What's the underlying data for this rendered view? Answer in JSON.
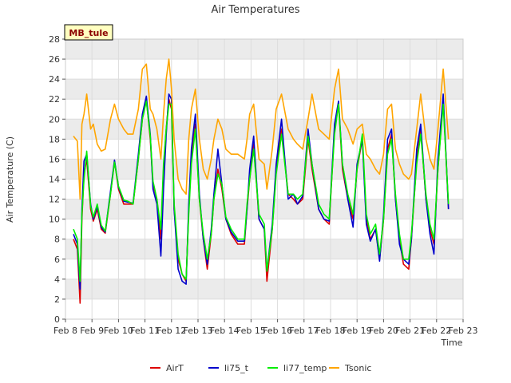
{
  "chart_data": {
    "type": "line",
    "title": "Air Temperatures",
    "xlabel": "Time",
    "ylabel": "Air Temperature (C)",
    "station_label": "MB_tule",
    "xlim": [
      8,
      23
    ],
    "ylim": [
      0,
      28
    ],
    "x_ticks": [
      8,
      9,
      10,
      11,
      12,
      13,
      14,
      15,
      16,
      17,
      18,
      19,
      20,
      21,
      22,
      23
    ],
    "x_tick_labels": [
      "Feb 8",
      "Feb 9",
      "Feb 10",
      "Feb 11",
      "Feb 12",
      "Feb 13",
      "Feb 14",
      "Feb 15",
      "Feb 16",
      "Feb 17",
      "Feb 18",
      "Feb 19",
      "Feb 20",
      "Feb 21",
      "Feb 22",
      "Feb 23"
    ],
    "y_ticks": [
      0,
      2,
      4,
      6,
      8,
      10,
      12,
      14,
      16,
      18,
      20,
      22,
      24,
      26,
      28
    ],
    "grid": true,
    "legend_position": "bottom",
    "series": [
      {
        "name": "AirT",
        "color": "#dd0000",
        "x": [
          8.3,
          8.45,
          8.55,
          8.62,
          8.7,
          8.8,
          8.95,
          9.05,
          9.2,
          9.35,
          9.5,
          9.7,
          9.85,
          10.0,
          10.2,
          10.35,
          10.55,
          10.75,
          10.9,
          11.05,
          11.2,
          11.3,
          11.45,
          11.6,
          11.7,
          11.8,
          11.9,
          12.0,
          12.1,
          12.25,
          12.4,
          12.55,
          12.65,
          12.75,
          12.9,
          13.05,
          13.2,
          13.35,
          13.5,
          13.6,
          13.75,
          13.9,
          14.05,
          14.25,
          14.5,
          14.75,
          14.85,
          14.95,
          15.1,
          15.3,
          15.5,
          15.6,
          15.8,
          15.95,
          16.15,
          16.4,
          16.6,
          16.75,
          16.95,
          17.15,
          17.3,
          17.55,
          17.75,
          17.95,
          18.15,
          18.3,
          18.45,
          18.65,
          18.85,
          19.0,
          19.2,
          19.35,
          19.5,
          19.7,
          19.85,
          20.0,
          20.15,
          20.3,
          20.45,
          20.6,
          20.75,
          20.95,
          21.05,
          21.25,
          21.4,
          21.6,
          21.75,
          21.9,
          22.05,
          22.25,
          22.45
        ],
        "values": [
          8.0,
          7.0,
          1.6,
          10.0,
          14.5,
          16.0,
          11.0,
          9.8,
          11.0,
          9.0,
          8.6,
          12.5,
          15.8,
          13.0,
          11.5,
          11.5,
          11.5,
          16.0,
          20.0,
          22.0,
          18.0,
          13.5,
          12.0,
          8.0,
          15.0,
          19.0,
          22.0,
          21.0,
          11.0,
          6.0,
          4.5,
          3.8,
          11.0,
          16.0,
          19.5,
          12.0,
          8.0,
          5.0,
          8.5,
          12.0,
          15.0,
          13.0,
          10.0,
          8.5,
          7.5,
          7.5,
          11.0,
          14.0,
          17.5,
          10.0,
          9.0,
          3.8,
          9.0,
          15.0,
          19.0,
          12.5,
          12.0,
          11.5,
          12.0,
          18.0,
          15.0,
          11.0,
          10.0,
          9.5,
          19.0,
          21.5,
          15.0,
          12.0,
          10.0,
          15.0,
          18.0,
          10.0,
          8.0,
          9.0,
          6.0,
          10.0,
          17.0,
          18.5,
          12.0,
          8.0,
          5.5,
          5.0,
          8.0,
          16.0,
          19.0,
          12.0,
          9.0,
          7.5,
          15.0,
          22.0,
          11.0
        ]
      },
      {
        "name": "li75_t",
        "color": "#0000cc",
        "x": [
          8.3,
          8.45,
          8.55,
          8.62,
          8.7,
          8.8,
          8.95,
          9.05,
          9.2,
          9.35,
          9.5,
          9.7,
          9.85,
          10.0,
          10.2,
          10.35,
          10.55,
          10.75,
          10.9,
          11.05,
          11.2,
          11.3,
          11.45,
          11.6,
          11.7,
          11.8,
          11.9,
          12.0,
          12.1,
          12.25,
          12.4,
          12.55,
          12.65,
          12.75,
          12.9,
          13.05,
          13.2,
          13.35,
          13.5,
          13.6,
          13.75,
          13.9,
          14.05,
          14.25,
          14.5,
          14.75,
          14.85,
          14.95,
          15.1,
          15.3,
          15.5,
          15.6,
          15.8,
          15.95,
          16.15,
          16.4,
          16.6,
          16.75,
          16.95,
          17.15,
          17.3,
          17.55,
          17.75,
          17.95,
          18.15,
          18.3,
          18.45,
          18.65,
          18.85,
          19.0,
          19.2,
          19.35,
          19.5,
          19.7,
          19.85,
          20.0,
          20.15,
          20.3,
          20.45,
          20.6,
          20.75,
          20.95,
          21.05,
          21.25,
          21.4,
          21.6,
          21.75,
          21.9,
          22.05,
          22.25,
          22.45
        ],
        "values": [
          8.5,
          7.5,
          3.0,
          11.0,
          15.8,
          16.5,
          11.5,
          10.0,
          11.3,
          9.2,
          8.7,
          12.8,
          15.9,
          13.2,
          11.8,
          11.7,
          11.6,
          16.5,
          20.5,
          22.3,
          18.5,
          13.0,
          11.5,
          6.3,
          13.0,
          18.5,
          22.5,
          22.0,
          11.0,
          5.0,
          3.8,
          3.5,
          11.5,
          17.0,
          20.5,
          12.5,
          8.0,
          5.5,
          9.0,
          12.5,
          17.0,
          13.5,
          10.0,
          8.7,
          7.8,
          7.8,
          11.0,
          15.0,
          18.3,
          10.0,
          9.0,
          4.8,
          9.5,
          15.5,
          20.0,
          12.0,
          12.5,
          11.5,
          12.3,
          19.0,
          15.5,
          11.0,
          10.0,
          9.8,
          19.5,
          21.8,
          15.5,
          12.0,
          9.2,
          15.5,
          18.0,
          9.5,
          7.8,
          9.0,
          5.8,
          10.5,
          18.0,
          19.0,
          12.0,
          7.5,
          6.0,
          5.5,
          8.0,
          17.0,
          19.5,
          12.0,
          8.5,
          6.5,
          16.0,
          22.5,
          11.0
        ]
      },
      {
        "name": "li77_temp",
        "color": "#00ee00",
        "x": [
          8.3,
          8.45,
          8.55,
          8.62,
          8.7,
          8.8,
          8.95,
          9.05,
          9.2,
          9.35,
          9.5,
          9.7,
          9.85,
          10.0,
          10.2,
          10.35,
          10.55,
          10.75,
          10.9,
          11.05,
          11.2,
          11.3,
          11.45,
          11.6,
          11.7,
          11.8,
          11.9,
          12.0,
          12.1,
          12.25,
          12.4,
          12.55,
          12.65,
          12.75,
          12.9,
          13.05,
          13.2,
          13.35,
          13.5,
          13.6,
          13.75,
          13.9,
          14.05,
          14.25,
          14.5,
          14.75,
          14.85,
          14.95,
          15.1,
          15.3,
          15.5,
          15.6,
          15.8,
          15.95,
          16.15,
          16.4,
          16.6,
          16.75,
          16.95,
          17.15,
          17.3,
          17.55,
          17.75,
          17.95,
          18.15,
          18.3,
          18.45,
          18.65,
          18.85,
          19.0,
          19.2,
          19.35,
          19.5,
          19.7,
          19.85,
          20.0,
          20.15,
          20.3,
          20.45,
          20.6,
          20.75,
          20.95,
          21.05,
          21.25,
          21.4,
          21.6,
          21.75,
          21.9,
          22.05,
          22.25,
          22.45
        ],
        "values": [
          9.0,
          8.0,
          3.8,
          10.5,
          14.0,
          16.8,
          11.3,
          10.2,
          11.5,
          9.4,
          8.8,
          12.5,
          15.7,
          13.3,
          11.9,
          11.8,
          11.5,
          16.0,
          20.0,
          21.8,
          18.3,
          13.8,
          12.0,
          9.0,
          15.5,
          19.0,
          21.5,
          21.5,
          11.5,
          6.5,
          4.5,
          4.0,
          10.5,
          15.5,
          19.0,
          12.0,
          8.5,
          6.0,
          8.5,
          12.0,
          14.5,
          13.5,
          10.2,
          9.0,
          8.0,
          8.0,
          11.5,
          14.0,
          17.0,
          10.5,
          9.5,
          4.8,
          9.0,
          14.5,
          18.5,
          12.5,
          12.5,
          12.0,
          12.5,
          18.3,
          15.5,
          11.5,
          10.5,
          10.0,
          18.5,
          21.5,
          15.5,
          12.5,
          10.5,
          15.0,
          18.5,
          10.5,
          8.5,
          9.5,
          6.5,
          10.0,
          16.5,
          18.0,
          12.5,
          8.5,
          6.0,
          6.0,
          8.5,
          15.5,
          18.5,
          12.5,
          9.5,
          8.0,
          15.0,
          21.5,
          11.5
        ]
      },
      {
        "name": "Tsonic",
        "color": "#ffa500",
        "x": [
          8.3,
          8.45,
          8.55,
          8.62,
          8.7,
          8.8,
          8.95,
          9.05,
          9.2,
          9.35,
          9.5,
          9.7,
          9.85,
          10.0,
          10.2,
          10.35,
          10.55,
          10.75,
          10.9,
          11.05,
          11.2,
          11.3,
          11.45,
          11.6,
          11.7,
          11.8,
          11.9,
          12.0,
          12.1,
          12.25,
          12.4,
          12.55,
          12.65,
          12.75,
          12.9,
          13.05,
          13.2,
          13.35,
          13.5,
          13.6,
          13.75,
          13.9,
          14.05,
          14.25,
          14.5,
          14.75,
          14.85,
          14.95,
          15.1,
          15.3,
          15.5,
          15.6,
          15.8,
          15.95,
          16.15,
          16.4,
          16.6,
          16.75,
          16.95,
          17.15,
          17.3,
          17.55,
          17.75,
          17.95,
          18.15,
          18.3,
          18.45,
          18.65,
          18.85,
          19.0,
          19.2,
          19.35,
          19.5,
          19.7,
          19.85,
          20.0,
          20.15,
          20.3,
          20.45,
          20.6,
          20.75,
          20.95,
          21.05,
          21.25,
          21.4,
          21.6,
          21.75,
          21.9,
          22.05,
          22.25,
          22.45
        ],
        "values": [
          18.3,
          17.8,
          12.0,
          19.5,
          20.5,
          22.5,
          19.0,
          19.5,
          17.5,
          16.8,
          17.0,
          20.0,
          21.5,
          20.0,
          19.0,
          18.5,
          18.5,
          21.0,
          25.0,
          25.5,
          21.0,
          20.5,
          19.0,
          16.0,
          20.5,
          24.0,
          26.0,
          23.0,
          18.0,
          14.0,
          13.0,
          12.5,
          18.0,
          21.0,
          23.0,
          18.0,
          15.0,
          14.0,
          16.0,
          18.0,
          20.0,
          19.0,
          17.0,
          16.5,
          16.5,
          16.0,
          18.0,
          20.5,
          21.5,
          16.0,
          15.5,
          13.0,
          17.0,
          21.0,
          22.5,
          19.0,
          18.0,
          17.5,
          17.0,
          20.0,
          22.5,
          19.0,
          18.5,
          18.0,
          23.0,
          25.0,
          20.0,
          19.0,
          17.5,
          19.0,
          19.5,
          16.5,
          16.0,
          15.0,
          14.5,
          16.5,
          21.0,
          21.5,
          17.0,
          15.5,
          14.5,
          14.0,
          14.5,
          19.0,
          22.5,
          18.0,
          16.0,
          15.0,
          19.0,
          25.0,
          18.0
        ]
      }
    ]
  }
}
